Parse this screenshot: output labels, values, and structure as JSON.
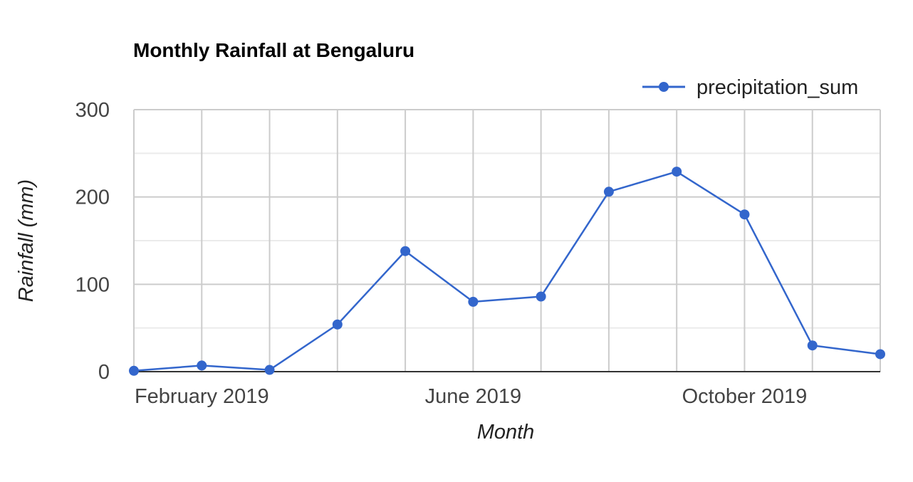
{
  "chart_data": {
    "type": "line",
    "title": "Monthly Rainfall at Bengaluru",
    "xlabel": "Month",
    "ylabel": "Rainfall (mm)",
    "x": [
      "2019-01",
      "2019-02",
      "2019-03",
      "2019-04",
      "2019-05",
      "2019-06",
      "2019-07",
      "2019-08",
      "2019-09",
      "2019-10",
      "2019-11",
      "2019-12"
    ],
    "x_ticks": [
      {
        "x": "2019-02",
        "label": "February 2019"
      },
      {
        "x": "2019-06",
        "label": "June 2019"
      },
      {
        "x": "2019-10",
        "label": "October 2019"
      }
    ],
    "series": [
      {
        "name": "precipitation_sum",
        "values": [
          1,
          7,
          2,
          54,
          138,
          80,
          86,
          206,
          229,
          180,
          30,
          20
        ]
      }
    ],
    "ylim": [
      0,
      300
    ],
    "y_ticks": [
      0,
      100,
      200,
      300
    ],
    "y_minor_step": 50,
    "grid": true,
    "legend_position": "top-right",
    "colors": {
      "series": "#3366cc",
      "grid_major": "#cccccc",
      "grid_minor": "#ebebeb",
      "baseline": "#333333"
    }
  }
}
